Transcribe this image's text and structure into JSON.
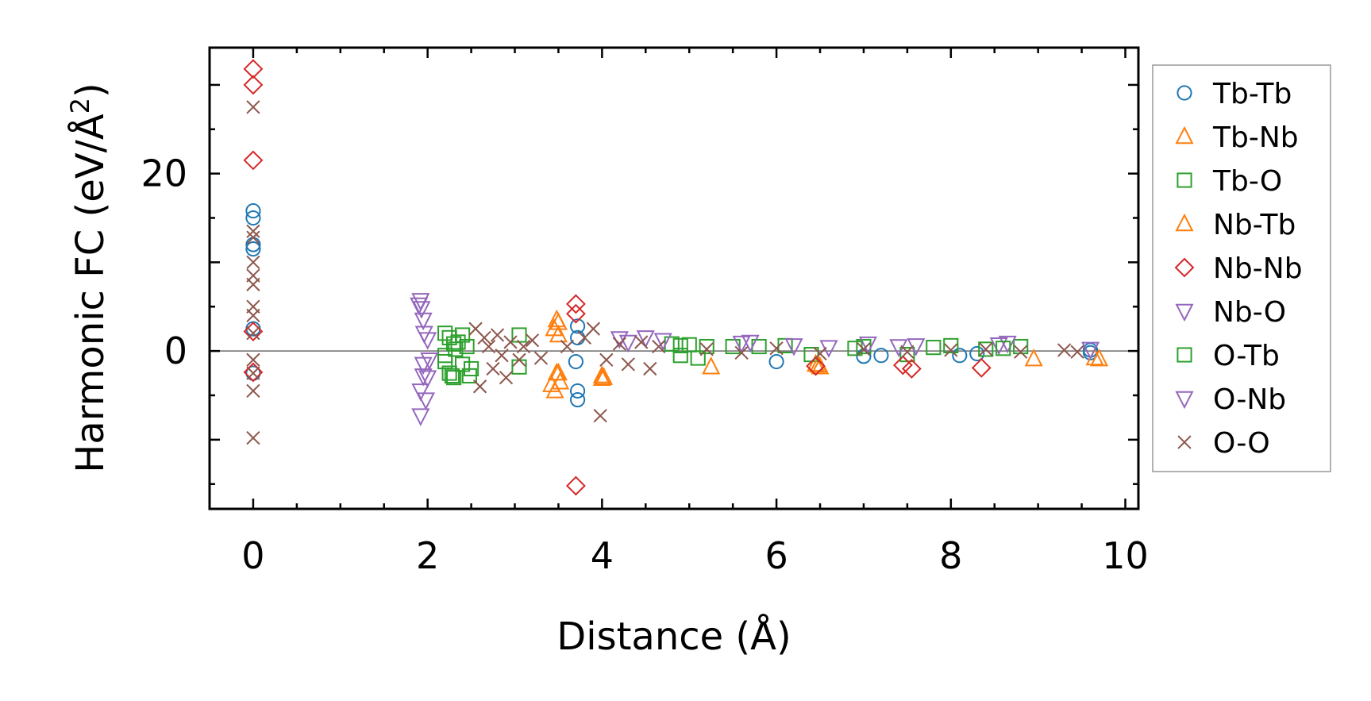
{
  "chart_data": {
    "type": "scatter",
    "title": "",
    "xlabel": "Distance (Å)",
    "ylabel": "Harmonic FC (eV/Å",
    "ylabel_sup": "2",
    "ylabel_close": ")",
    "xlim": [
      -0.5,
      10.15
    ],
    "ylim": [
      -17.8,
      34.2
    ],
    "xticks": [
      0,
      2,
      4,
      6,
      8,
      10
    ],
    "xtick_labels": [
      "0",
      "2",
      "4",
      "6",
      "8",
      "10"
    ],
    "yticks": [
      0,
      20
    ],
    "ytick_labels": [
      "0",
      "20"
    ],
    "legend_position": "right-outside-top",
    "series": [
      {
        "name": "Tb-Tb",
        "marker": "circle",
        "color": "#1f77b4",
        "points": [
          [
            0,
            15.8
          ],
          [
            0,
            15
          ],
          [
            0,
            12
          ],
          [
            0,
            11.5
          ],
          [
            0,
            2.5
          ],
          [
            0,
            -2.5
          ],
          [
            3.72,
            2.8
          ],
          [
            3.72,
            1.5
          ],
          [
            3.7,
            -1.2
          ],
          [
            3.72,
            -4.5
          ],
          [
            3.72,
            -5.5
          ],
          [
            6,
            -1.2
          ],
          [
            7,
            -0.6
          ],
          [
            7.2,
            -0.5
          ],
          [
            8.1,
            -0.5
          ],
          [
            8.3,
            -0.3
          ],
          [
            9.6,
            0.1
          ],
          [
            9.6,
            -0.2
          ]
        ]
      },
      {
        "name": "Tb-Nb",
        "marker": "triangle-up",
        "color": "#ff7f0e",
        "points": [
          [
            3.48,
            3.5
          ],
          [
            3.45,
            2.5
          ],
          [
            3.5,
            1.8
          ],
          [
            3.42,
            -3.8
          ],
          [
            3.46,
            -4.5
          ],
          [
            3.5,
            -2.5
          ],
          [
            4,
            -2.8
          ],
          [
            4,
            -3.1
          ],
          [
            5.25,
            -1.8
          ],
          [
            6.45,
            -1.5
          ],
          [
            6.5,
            -1.8
          ],
          [
            8.95,
            -0.9
          ],
          [
            9.65,
            -0.8
          ]
        ]
      },
      {
        "name": "Tb-O",
        "marker": "square",
        "color": "#2ca02c",
        "points": [
          [
            2.2,
            2
          ],
          [
            2.25,
            1.5
          ],
          [
            2.3,
            0.8
          ],
          [
            2.2,
            -0.5
          ],
          [
            2.25,
            -2.5
          ],
          [
            2.3,
            -3
          ],
          [
            2.35,
            1
          ],
          [
            2.4,
            -1.5
          ],
          [
            2.45,
            0.5
          ],
          [
            2.5,
            -2
          ],
          [
            3.05,
            1.8
          ],
          [
            3.05,
            -1.8
          ],
          [
            4.8,
            0.8
          ],
          [
            4.9,
            0.6
          ],
          [
            5,
            0.7
          ],
          [
            5.1,
            -0.8
          ],
          [
            5.5,
            0.5
          ],
          [
            5.8,
            0.5
          ],
          [
            6.1,
            0.6
          ],
          [
            6.4,
            -0.4
          ],
          [
            7,
            0.5
          ],
          [
            7.5,
            -0.4
          ],
          [
            8,
            0.6
          ],
          [
            8.4,
            0.2
          ],
          [
            8.8,
            0.5
          ]
        ]
      },
      {
        "name": "Nb-Tb",
        "marker": "triangle-up",
        "color": "#ff7f0e",
        "points": [
          [
            3.5,
            3.2
          ],
          [
            3.52,
            -3.5
          ],
          [
            3.48,
            -2.5
          ],
          [
            4.02,
            -3
          ],
          [
            6.48,
            -1.6
          ],
          [
            9.7,
            -0.9
          ]
        ]
      },
      {
        "name": "Nb-Nb",
        "marker": "diamond",
        "color": "#d62728",
        "points": [
          [
            0,
            31.8
          ],
          [
            0,
            30
          ],
          [
            0,
            21.5
          ],
          [
            0,
            2.2
          ],
          [
            0,
            -2.4
          ],
          [
            3.7,
            5.3
          ],
          [
            3.7,
            4.2
          ],
          [
            3.7,
            -15.2
          ],
          [
            6.45,
            -1.7
          ],
          [
            7.45,
            -1.6
          ],
          [
            7.55,
            -2
          ],
          [
            8.35,
            -1.9
          ]
        ]
      },
      {
        "name": "Nb-O",
        "marker": "triangle-down",
        "color": "#9467bd",
        "points": [
          [
            1.92,
            5.7
          ],
          [
            1.93,
            4.8
          ],
          [
            1.95,
            3.5
          ],
          [
            1.96,
            2
          ],
          [
            1.95,
            -1.5
          ],
          [
            1.92,
            -4.5
          ],
          [
            1.92,
            -7.3
          ],
          [
            1.95,
            -2.8
          ],
          [
            2,
            -3
          ],
          [
            2.02,
            -1
          ],
          [
            4.2,
            1.4
          ],
          [
            4.5,
            1.5
          ],
          [
            4.7,
            1.2
          ],
          [
            5.7,
            1
          ],
          [
            6.2,
            0.6
          ],
          [
            6.6,
            0.4
          ],
          [
            7.05,
            0.8
          ],
          [
            7.6,
            0.6
          ],
          [
            8.55,
            0.7
          ],
          [
            8.65,
            0.9
          ],
          [
            9.6,
            0.2
          ]
        ]
      },
      {
        "name": "O-Tb",
        "marker": "square",
        "color": "#2ca02c",
        "points": [
          [
            2.2,
            -1.2
          ],
          [
            2.28,
            -2.8
          ],
          [
            2.32,
            0.2
          ],
          [
            2.4,
            1.8
          ],
          [
            2.48,
            -2.8
          ],
          [
            4.9,
            -0.5
          ],
          [
            5.2,
            0.5
          ],
          [
            6.9,
            0.3
          ],
          [
            7.8,
            0.4
          ],
          [
            8.6,
            0.3
          ]
        ]
      },
      {
        "name": "O-Nb",
        "marker": "triangle-down",
        "color": "#9467bd",
        "points": [
          [
            1.9,
            5.2
          ],
          [
            1.98,
            -5.5
          ],
          [
            2,
            1.3
          ],
          [
            4.3,
            1
          ],
          [
            5.6,
            0.9
          ],
          [
            7.4,
            0.5
          ]
        ]
      },
      {
        "name": "O-O",
        "marker": "cross",
        "color": "#8c564b",
        "points": [
          [
            0,
            27.5
          ],
          [
            0,
            13.5
          ],
          [
            0,
            12.8
          ],
          [
            0,
            10
          ],
          [
            0,
            8.5
          ],
          [
            0,
            7.5
          ],
          [
            0,
            5
          ],
          [
            0,
            4
          ],
          [
            0,
            2
          ],
          [
            0,
            -1
          ],
          [
            0,
            -2.5
          ],
          [
            0,
            -4.5
          ],
          [
            0,
            -9.8
          ],
          [
            2.55,
            2.5
          ],
          [
            2.6,
            -4
          ],
          [
            2.65,
            1.5
          ],
          [
            2.7,
            0.5
          ],
          [
            2.75,
            -2
          ],
          [
            2.8,
            1.8
          ],
          [
            2.85,
            -0.5
          ],
          [
            2.9,
            -3
          ],
          [
            2.95,
            1
          ],
          [
            3.05,
            -1
          ],
          [
            3.1,
            0.5
          ],
          [
            3.2,
            1.2
          ],
          [
            3.3,
            -0.8
          ],
          [
            3.6,
            0.5
          ],
          [
            3.8,
            1.5
          ],
          [
            3.9,
            2.5
          ],
          [
            3.98,
            -7.3
          ],
          [
            4.05,
            -1
          ],
          [
            4.2,
            0.8
          ],
          [
            4.3,
            -1.5
          ],
          [
            4.45,
            1
          ],
          [
            4.55,
            -2
          ],
          [
            4.65,
            0.5
          ],
          [
            5.2,
            0.2
          ],
          [
            5.6,
            -0.2
          ],
          [
            6,
            0.3
          ],
          [
            6.5,
            -0.3
          ],
          [
            7,
            0.2
          ],
          [
            7.5,
            -0.1
          ],
          [
            8,
            0.1
          ],
          [
            8.4,
            0.2
          ],
          [
            8.8,
            -0.1
          ],
          [
            9.3,
            0.1
          ],
          [
            9.45,
            -0.1
          ]
        ]
      }
    ]
  }
}
